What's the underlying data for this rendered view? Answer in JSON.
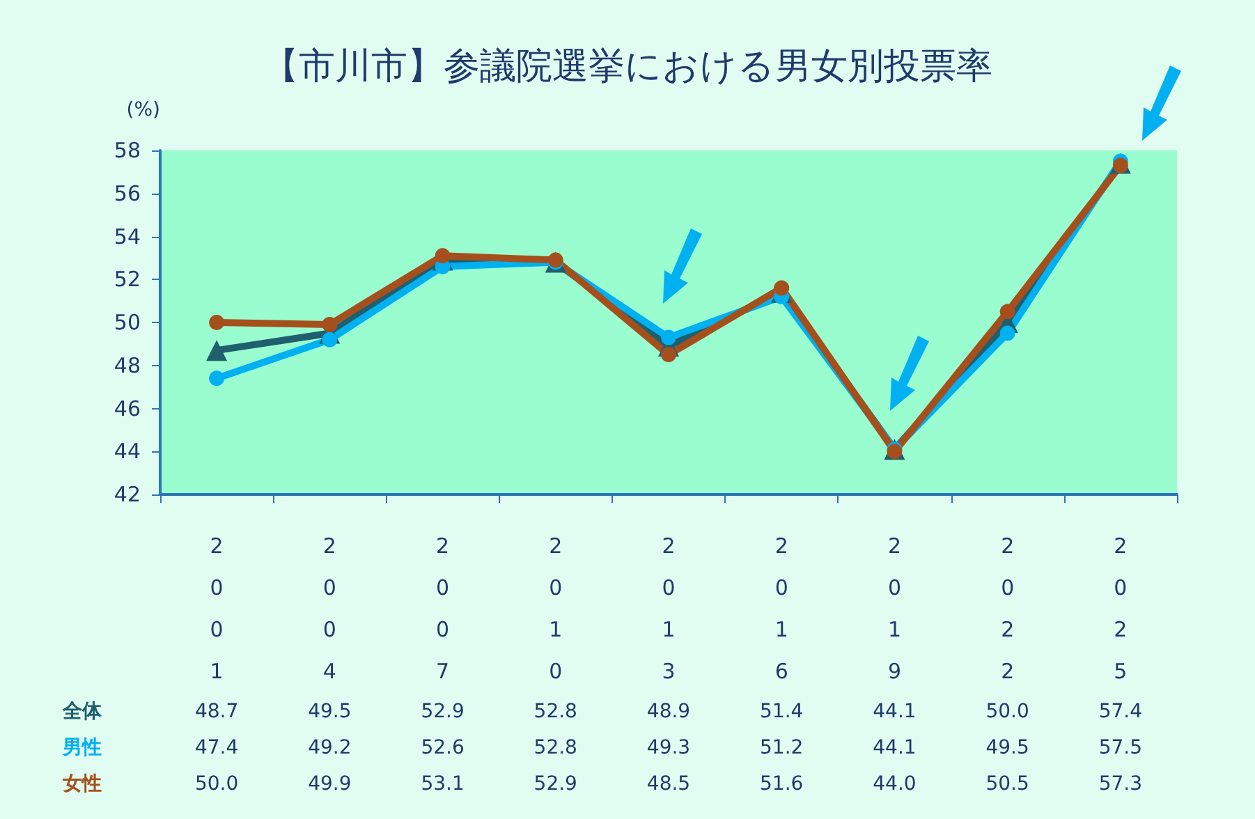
{
  "chart_data": {
    "type": "line",
    "title": "【市川市】参議院選挙における男女別投票率",
    "ylabel": "(%)",
    "categories": [
      "2001",
      "2004",
      "2007",
      "2010",
      "2013",
      "2016",
      "2019",
      "2022",
      "2025"
    ],
    "series": [
      {
        "name": "全体",
        "color": "#1f5f6e",
        "marker": "triangle",
        "values": [
          48.7,
          49.5,
          52.9,
          52.8,
          48.9,
          51.4,
          44.1,
          50.0,
          57.4
        ],
        "value_labels": [
          "48.7",
          "49.5",
          "52.9",
          "52.8",
          "48.9",
          "51.4",
          "44.1",
          "50.0",
          "57.4"
        ]
      },
      {
        "name": "男性",
        "color": "#00b0f0",
        "marker": "circle",
        "values": [
          47.4,
          49.2,
          52.6,
          52.8,
          49.3,
          51.2,
          44.1,
          49.5,
          57.5
        ],
        "value_labels": [
          "47.4",
          "49.2",
          "52.6",
          "52.8",
          "49.3",
          "51.2",
          "44.1",
          "49.5",
          "57.5"
        ]
      },
      {
        "name": "女性",
        "color": "#a5501c",
        "marker": "circle",
        "values": [
          50.0,
          49.9,
          53.1,
          52.9,
          48.5,
          51.6,
          44.0,
          50.5,
          57.3
        ],
        "value_labels": [
          "50.0",
          "49.9",
          "53.1",
          "52.9",
          "48.5",
          "51.6",
          "44.0",
          "50.5",
          "57.3"
        ]
      }
    ],
    "ylim": [
      42,
      58
    ],
    "yticks": [
      42,
      44,
      46,
      48,
      50,
      52,
      54,
      56,
      58
    ],
    "grid": false,
    "legend": false,
    "line_style": "solid"
  }
}
